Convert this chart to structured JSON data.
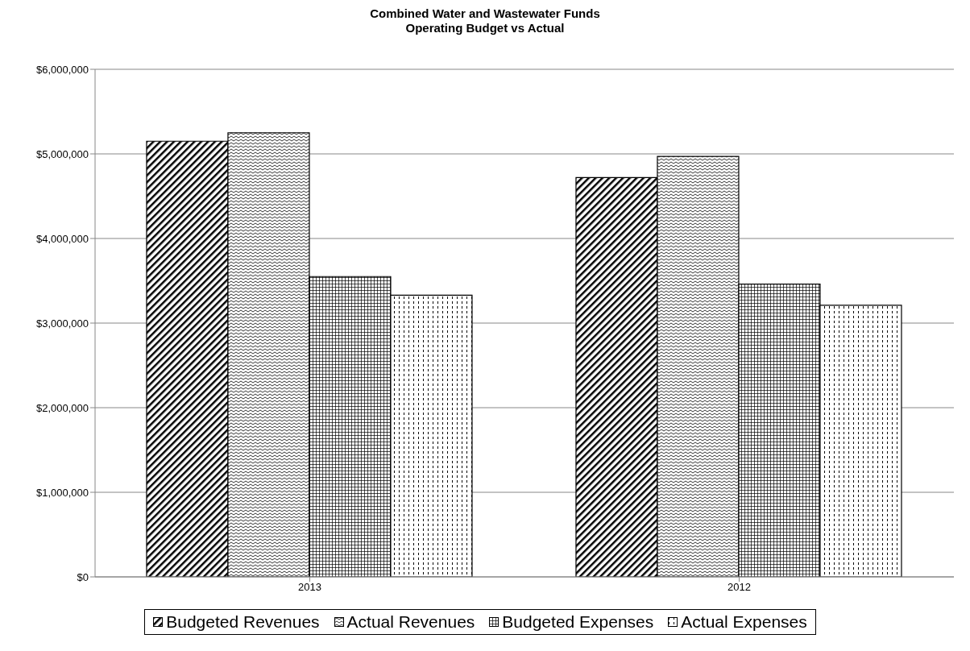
{
  "chart_data": {
    "type": "bar",
    "title": "Combined Water and Wastewater Funds\nOperating Budget vs Actual",
    "categories": [
      "2013",
      "2012"
    ],
    "series": [
      {
        "name": "Budgeted Revenues",
        "color": "#000000",
        "values": [
          5150000,
          4720000
        ]
      },
      {
        "name": "Actual Revenues",
        "color": "#000000",
        "values": [
          5250000,
          4970000
        ]
      },
      {
        "name": "Budgeted Expenses",
        "color": "#000000",
        "values": [
          3550000,
          3460000
        ]
      },
      {
        "name": "Actual Expenses",
        "color": "#000000",
        "values": [
          3330000,
          3210000
        ]
      }
    ],
    "ylim": [
      0,
      6000000
    ],
    "yticks": [
      {
        "value": 0,
        "label": "$0"
      },
      {
        "value": 1000000,
        "label": "$1,000,000"
      },
      {
        "value": 2000000,
        "label": "$2,000,000"
      },
      {
        "value": 3000000,
        "label": "$3,000,000"
      },
      {
        "value": 4000000,
        "label": "$4,000,000"
      },
      {
        "value": 5000000,
        "label": "$5,000,000"
      },
      {
        "value": 6000000,
        "label": "$6,000,000"
      }
    ],
    "grid": "y",
    "legend": "bottom"
  }
}
